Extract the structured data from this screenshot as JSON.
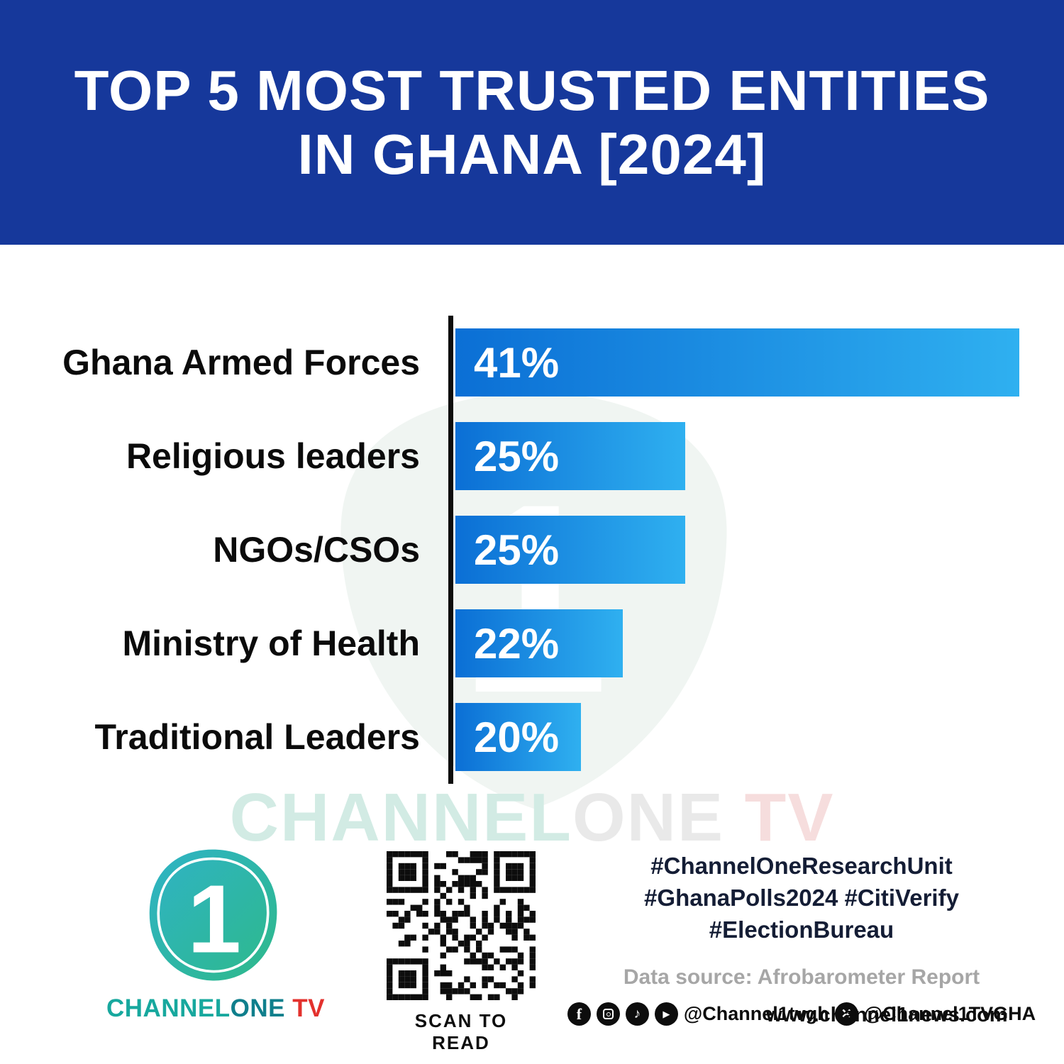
{
  "header": {
    "title_line1": "TOP 5 MOST TRUSTED ENTITIES",
    "title_line2": "IN GHANA [2024]",
    "bg_color": "#16389b"
  },
  "chart_data": {
    "type": "bar",
    "orientation": "horizontal",
    "title": "TOP 5 MOST TRUSTED ENTITIES IN GHANA [2024]",
    "categories": [
      "Ghana Armed Forces",
      "Religious leaders",
      "NGOs/CSOs",
      "Ministry of Health",
      "Traditional Leaders"
    ],
    "values": [
      41,
      25,
      25,
      22,
      20
    ],
    "value_labels": [
      "41%",
      "25%",
      "25%",
      "22%",
      "20%"
    ],
    "xlabel": "",
    "ylabel": "",
    "grid": false,
    "legend": false,
    "axis_color": "#0d0d0d",
    "bar_colors": {
      "start": "#0b6fd5",
      "end": "#2fb0f0"
    },
    "visual_scale_note": "bars rendered against axis starting offset",
    "visual_scale": {
      "min": 14,
      "max": 41
    }
  },
  "watermark": {
    "part1": "CHANNEL",
    "part2": "ONE",
    "part3": " TV"
  },
  "footer": {
    "logo": {
      "mark": "1",
      "channel": "CHANNEL",
      "one": "ONE",
      "tv": " TV"
    },
    "qr_caption": "SCAN TO READ",
    "hashtags": [
      "#ChannelOneResearchUnit",
      "#GhanaPolls2024 #CitiVerify",
      "#ElectionBureau"
    ],
    "data_source": "Data source: Afrobarometer Report",
    "social": {
      "handle1": "@Channel1tvgh",
      "handle2": "@Channel1TVGHA"
    },
    "website": "www.channel1news.com"
  }
}
